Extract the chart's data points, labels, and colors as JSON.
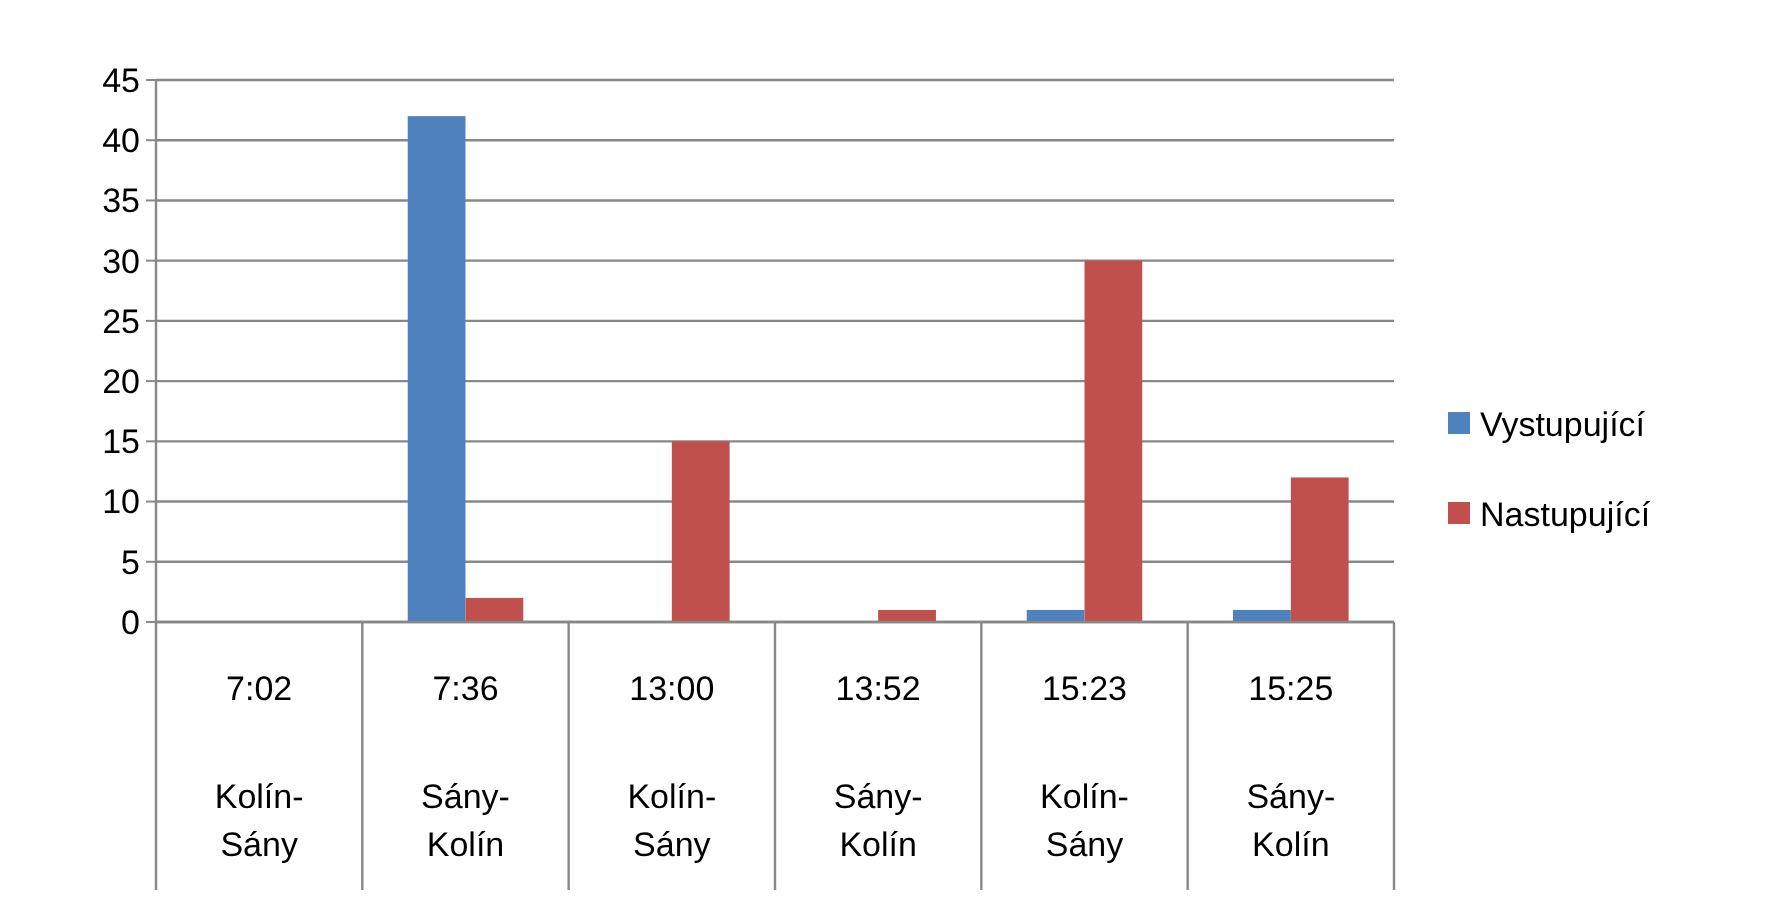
{
  "chart_data": {
    "type": "bar",
    "categories": [
      "7:02 Kolín-Sány",
      "7:36 Sány-Kolín",
      "13:00 Kolín-Sány",
      "13:52 Sány-Kolín",
      "15:23 Kolín-Sány",
      "15:25 Sány-Kolín"
    ],
    "series": [
      {
        "name": "Vystupující",
        "color": "#4f81bd",
        "values": [
          0,
          42,
          0,
          0,
          1,
          1
        ]
      },
      {
        "name": "Nastupující",
        "color": "#c0504d",
        "values": [
          0,
          2,
          15,
          1,
          30,
          12
        ]
      }
    ],
    "ylim": [
      0,
      45
    ],
    "yticks": [
      0,
      5,
      10,
      15,
      20,
      25,
      30,
      35,
      40,
      45
    ],
    "grid": "y",
    "legend": "right"
  }
}
